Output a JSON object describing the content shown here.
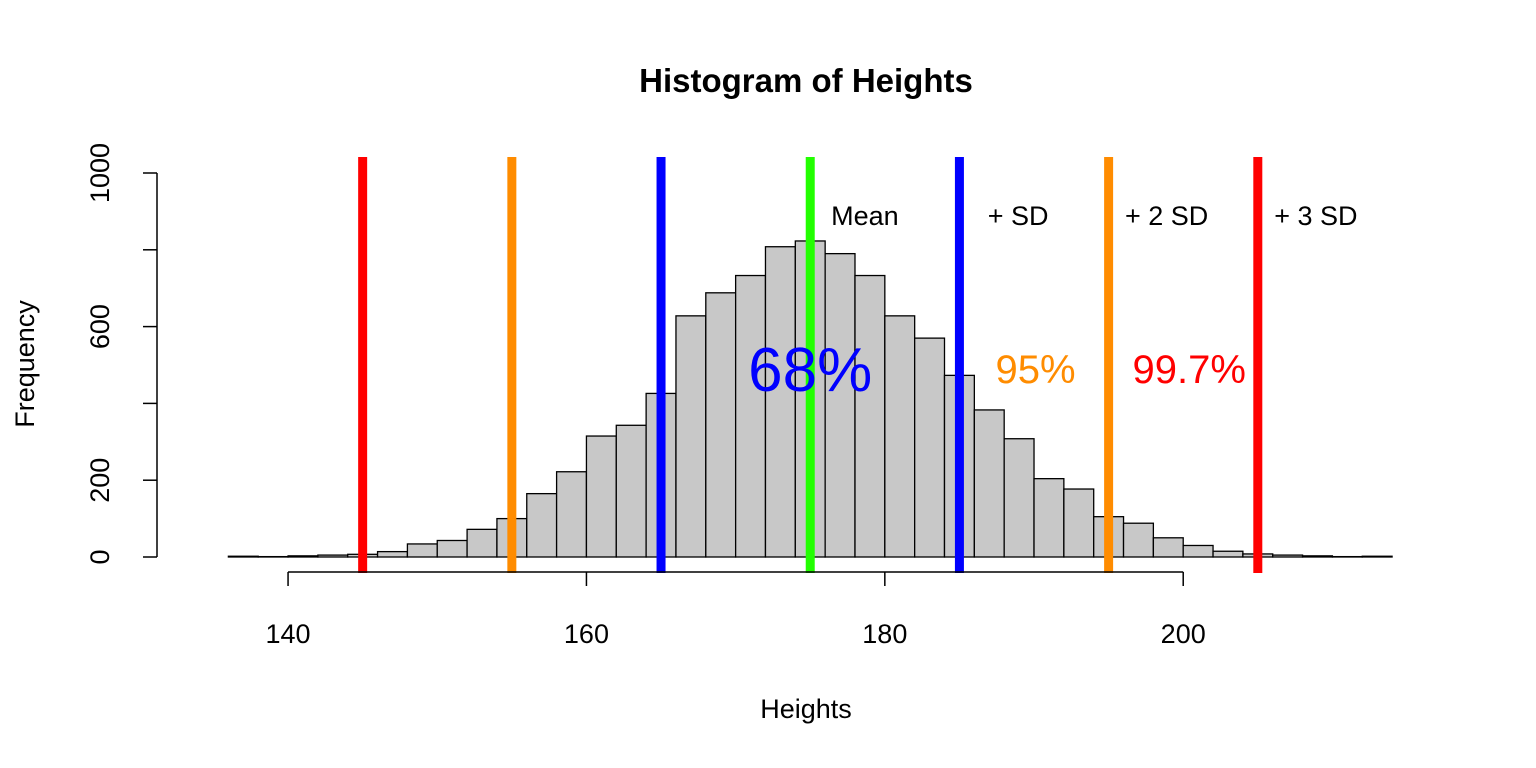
{
  "chart_data": {
    "type": "bar",
    "title": "Histogram of Heights",
    "xlabel": "Heights",
    "ylabel": "Frequency",
    "xlim": [
      134.5,
      215
    ],
    "ylim": [
      0,
      1000
    ],
    "x_ticks": [
      140,
      160,
      180,
      200
    ],
    "y_ticks": [
      0,
      200,
      600,
      1000
    ],
    "bin_width": 2,
    "bins": [
      {
        "start": 136,
        "end": 138,
        "count": 2
      },
      {
        "start": 138,
        "end": 140,
        "count": 1
      },
      {
        "start": 140,
        "end": 142,
        "count": 3
      },
      {
        "start": 142,
        "end": 144,
        "count": 5
      },
      {
        "start": 144,
        "end": 146,
        "count": 7
      },
      {
        "start": 146,
        "end": 148,
        "count": 14
      },
      {
        "start": 148,
        "end": 150,
        "count": 34
      },
      {
        "start": 150,
        "end": 152,
        "count": 43
      },
      {
        "start": 152,
        "end": 154,
        "count": 72
      },
      {
        "start": 154,
        "end": 156,
        "count": 100
      },
      {
        "start": 156,
        "end": 158,
        "count": 165
      },
      {
        "start": 158,
        "end": 160,
        "count": 222
      },
      {
        "start": 160,
        "end": 162,
        "count": 315
      },
      {
        "start": 162,
        "end": 164,
        "count": 343
      },
      {
        "start": 164,
        "end": 166,
        "count": 426
      },
      {
        "start": 166,
        "end": 168,
        "count": 628
      },
      {
        "start": 168,
        "end": 170,
        "count": 688
      },
      {
        "start": 170,
        "end": 172,
        "count": 733
      },
      {
        "start": 172,
        "end": 174,
        "count": 808
      },
      {
        "start": 174,
        "end": 176,
        "count": 823
      },
      {
        "start": 176,
        "end": 178,
        "count": 790
      },
      {
        "start": 178,
        "end": 180,
        "count": 733
      },
      {
        "start": 180,
        "end": 182,
        "count": 628
      },
      {
        "start": 182,
        "end": 184,
        "count": 570
      },
      {
        "start": 184,
        "end": 186,
        "count": 473
      },
      {
        "start": 186,
        "end": 188,
        "count": 383
      },
      {
        "start": 188,
        "end": 190,
        "count": 308
      },
      {
        "start": 190,
        "end": 192,
        "count": 204
      },
      {
        "start": 192,
        "end": 194,
        "count": 177
      },
      {
        "start": 194,
        "end": 196,
        "count": 105
      },
      {
        "start": 196,
        "end": 198,
        "count": 88
      },
      {
        "start": 198,
        "end": 200,
        "count": 50
      },
      {
        "start": 200,
        "end": 202,
        "count": 30
      },
      {
        "start": 202,
        "end": 204,
        "count": 15
      },
      {
        "start": 204,
        "end": 206,
        "count": 8
      },
      {
        "start": 206,
        "end": 208,
        "count": 5
      },
      {
        "start": 208,
        "end": 210,
        "count": 3
      },
      {
        "start": 210,
        "end": 212,
        "count": 1
      },
      {
        "start": 212,
        "end": 214,
        "count": 2
      }
    ],
    "bar_fill": "#c8c8c8",
    "bar_stroke": "#000000",
    "vlines": [
      {
        "x": 145,
        "color": "#ff0000"
      },
      {
        "x": 155,
        "color": "#ff8c00"
      },
      {
        "x": 165,
        "color": "#0000ff"
      },
      {
        "x": 175,
        "color": "#22ff00"
      },
      {
        "x": 185,
        "color": "#0000ff"
      },
      {
        "x": 195,
        "color": "#ff8c00"
      },
      {
        "x": 205,
        "color": "#ff0000"
      }
    ],
    "annotations": [
      {
        "text": "Mean",
        "x": 176.4,
        "y": 890,
        "color": "#000000",
        "size": "small",
        "anchor": "start"
      },
      {
        "text": "+ SD",
        "x": 186.9,
        "y": 890,
        "color": "#000000",
        "size": "small",
        "anchor": "start"
      },
      {
        "text": "+ 2 SD",
        "x": 196.1,
        "y": 890,
        "color": "#000000",
        "size": "small",
        "anchor": "start"
      },
      {
        "text": "+ 3 SD",
        "x": 206.1,
        "y": 890,
        "color": "#000000",
        "size": "small",
        "anchor": "start"
      },
      {
        "text": "68%",
        "x": 175,
        "y": 490,
        "color": "#0000ff",
        "size": "large",
        "anchor": "middle"
      },
      {
        "text": "95%",
        "x": 190.1,
        "y": 490,
        "color": "#ff8c00",
        "size": "medium",
        "anchor": "middle"
      },
      {
        "text": "99.7%",
        "x": 200.4,
        "y": 490,
        "color": "#ff0000",
        "size": "medium",
        "anchor": "middle"
      }
    ]
  }
}
